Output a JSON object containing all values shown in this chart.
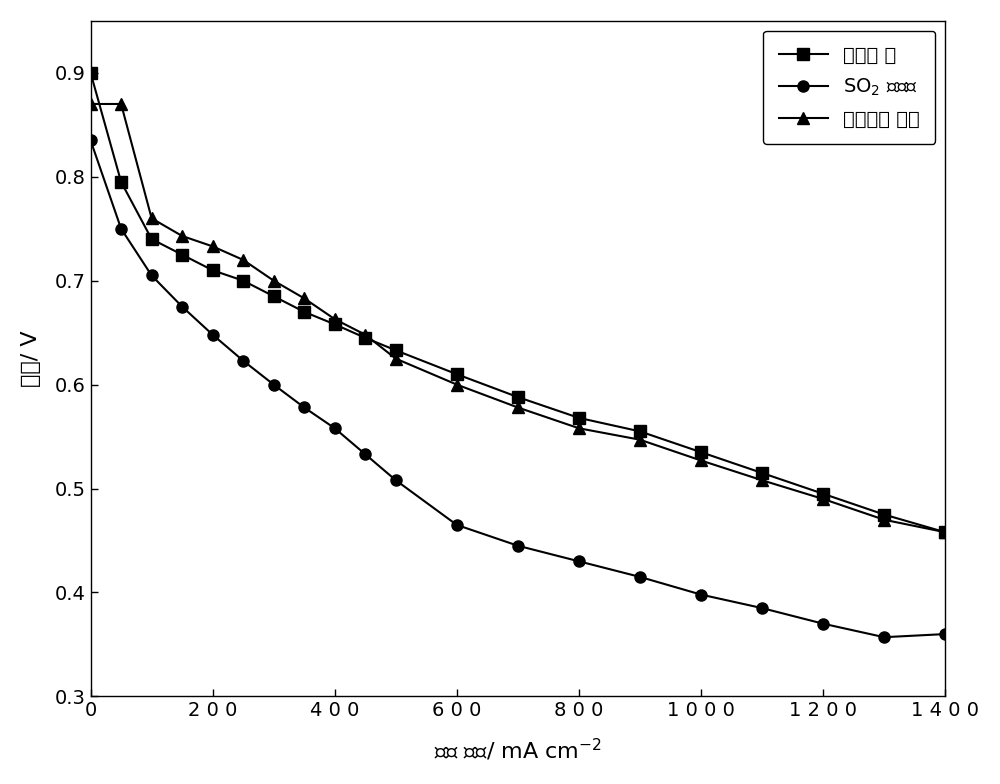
{
  "series1_label": "初始状 态",
  "series2_label": "SO$_2$ 中毒后",
  "series3_label": "氧气吹扫 恢复",
  "series1_x": [
    0,
    50,
    100,
    150,
    200,
    250,
    300,
    350,
    400,
    450,
    500,
    600,
    700,
    800,
    900,
    1000,
    1100,
    1200,
    1300,
    1400
  ],
  "series1_y": [
    0.9,
    0.795,
    0.74,
    0.725,
    0.71,
    0.7,
    0.685,
    0.67,
    0.658,
    0.645,
    0.633,
    0.61,
    0.588,
    0.568,
    0.555,
    0.535,
    0.515,
    0.495,
    0.475,
    0.458
  ],
  "series2_x": [
    0,
    50,
    100,
    150,
    200,
    250,
    300,
    350,
    400,
    450,
    500,
    600,
    700,
    800,
    900,
    1000,
    1100,
    1200,
    1300,
    1400
  ],
  "series2_y": [
    0.835,
    0.75,
    0.705,
    0.675,
    0.648,
    0.623,
    0.6,
    0.578,
    0.558,
    0.533,
    0.508,
    0.465,
    0.445,
    0.43,
    0.415,
    0.398,
    0.385,
    0.37,
    0.357,
    0.36
  ],
  "series3_x": [
    0,
    50,
    100,
    150,
    200,
    250,
    300,
    350,
    400,
    450,
    500,
    600,
    700,
    800,
    900,
    1000,
    1100,
    1200,
    1300,
    1400
  ],
  "series3_y": [
    0.87,
    0.87,
    0.76,
    0.743,
    0.733,
    0.72,
    0.7,
    0.683,
    0.663,
    0.648,
    0.625,
    0.6,
    0.578,
    0.558,
    0.547,
    0.527,
    0.508,
    0.49,
    0.47,
    0.458
  ],
  "xlabel": "电流 密度/ mA cm$^{-2}$",
  "ylabel": "电压/ V",
  "xlim": [
    0,
    1400
  ],
  "ylim": [
    0.3,
    0.95
  ],
  "yticks": [
    0.3,
    0.4,
    0.5,
    0.6,
    0.7,
    0.8,
    0.9
  ],
  "xticks": [
    0,
    200,
    400,
    600,
    800,
    1000,
    1200,
    1400
  ],
  "xtick_labels": [
    "0",
    "2 0 0",
    "4 0 0",
    "6 0 0",
    "8 0 0",
    "1 0 0 0",
    "1 2 0 0",
    "1 4 0 0"
  ],
  "line_color": "#000000",
  "bg_color": "#ffffff",
  "marker_size": 8,
  "linewidth": 1.5,
  "label_fontsize": 16,
  "tick_fontsize": 14,
  "legend_fontsize": 14
}
